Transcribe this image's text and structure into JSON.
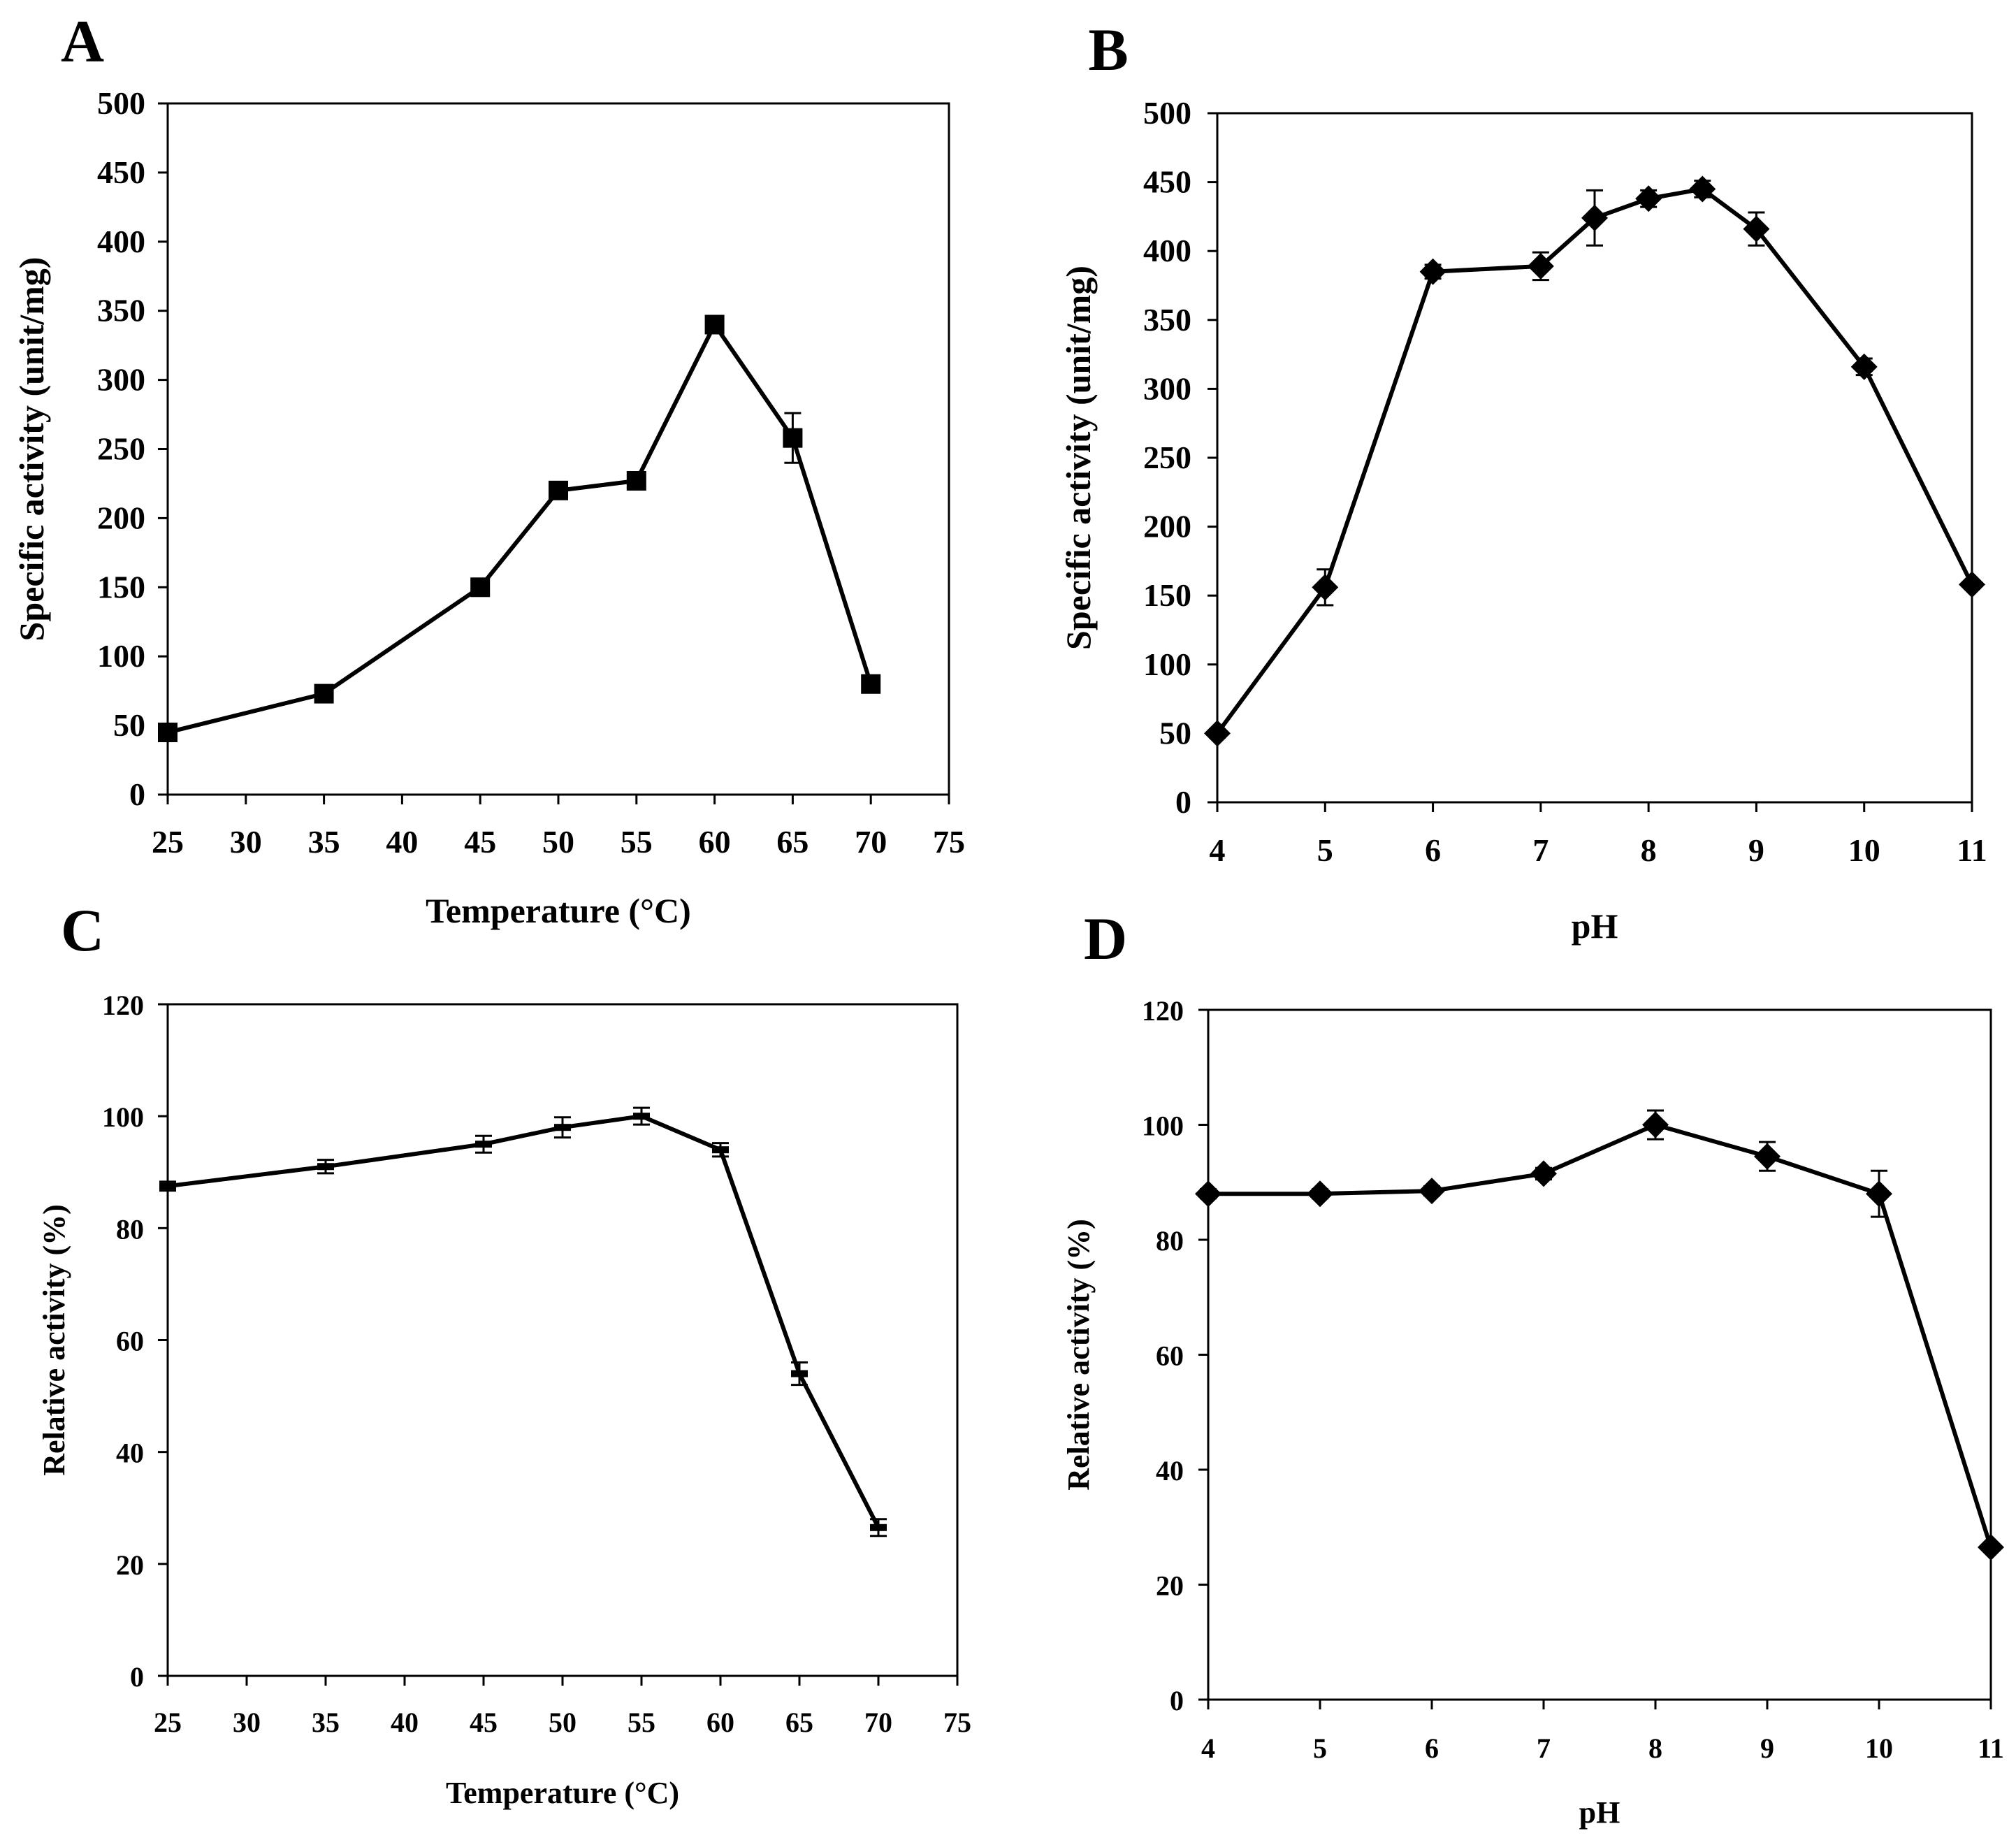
{
  "colors": {
    "line": "#000000",
    "background": "#ffffff"
  },
  "chart_data": [
    {
      "panel": "A",
      "type": "line",
      "marker": "square",
      "title": "",
      "xlabel": "Temperature (°C)",
      "ylabel": "Specific activity (unit/mg)",
      "xlim": [
        25,
        75
      ],
      "ylim": [
        0,
        500
      ],
      "xticks": [
        "25",
        "30",
        "35",
        "40",
        "45",
        "50",
        "55",
        "60",
        "65",
        "70",
        "75"
      ],
      "yticks": [
        "0",
        "50",
        "100",
        "150",
        "200",
        "250",
        "300",
        "350",
        "400",
        "450",
        "500"
      ],
      "grid": false,
      "x": [
        25,
        35,
        45,
        50,
        55,
        60,
        65,
        70
      ],
      "y": [
        45,
        73,
        150,
        220,
        227,
        340,
        258,
        80
      ],
      "error": [
        3,
        3,
        4,
        4,
        4,
        4,
        18,
        3
      ]
    },
    {
      "panel": "B",
      "type": "line",
      "marker": "diamond",
      "title": "",
      "xlabel": "pH",
      "ylabel": "Specific activity (unit/mg)",
      "xlim": [
        4,
        11
      ],
      "ylim": [
        0,
        500
      ],
      "xticks": [
        "4",
        "5",
        "6",
        "7",
        "8",
        "9",
        "10",
        "11"
      ],
      "yticks": [
        "0",
        "50",
        "100",
        "150",
        "200",
        "250",
        "300",
        "350",
        "400",
        "450",
        "500"
      ],
      "grid": false,
      "x": [
        4,
        5,
        6,
        7,
        7.5,
        8,
        8.5,
        9,
        10,
        11
      ],
      "y": [
        50,
        156,
        385,
        389,
        424,
        438,
        445,
        416,
        316,
        158
      ],
      "error": [
        3,
        13,
        5,
        10,
        20,
        6,
        6,
        12,
        6,
        3
      ]
    },
    {
      "panel": "C",
      "type": "line",
      "marker": "dash",
      "title": "",
      "xlabel": "Temperature  (°C)",
      "ylabel": "Relative  activity  (%)",
      "xlim": [
        25,
        75
      ],
      "ylim": [
        0,
        120
      ],
      "xticks": [
        "25",
        "30",
        "35",
        "40",
        "45",
        "50",
        "55",
        "60",
        "65",
        "70",
        "75"
      ],
      "yticks": [
        "0",
        "20",
        "40",
        "60",
        "80",
        "100",
        "120"
      ],
      "grid": false,
      "x": [
        25,
        35,
        45,
        50,
        55,
        60,
        65,
        70
      ],
      "y": [
        87.5,
        91,
        95,
        98,
        100,
        94,
        54,
        26.5
      ],
      "error": [
        0.8,
        1.2,
        1.5,
        1.8,
        1.5,
        1.2,
        2,
        1.5
      ]
    },
    {
      "panel": "D",
      "type": "line",
      "marker": "diamond",
      "title": "",
      "xlabel": "pH",
      "ylabel": "Relative activity (%)",
      "xlim": [
        4,
        11
      ],
      "ylim": [
        0,
        120
      ],
      "xticks": [
        "4",
        "5",
        "6",
        "7",
        "8",
        "9",
        "10",
        "11"
      ],
      "yticks": [
        "0",
        "20",
        "40",
        "60",
        "80",
        "100",
        "120"
      ],
      "grid": false,
      "x": [
        4,
        5,
        6,
        7,
        8,
        9,
        10,
        11
      ],
      "y": [
        88,
        88,
        88.5,
        91.5,
        100,
        94.5,
        88,
        26.5
      ],
      "error": [
        0.8,
        0.8,
        0.8,
        1,
        2.5,
        2.5,
        4,
        0.5
      ]
    }
  ]
}
